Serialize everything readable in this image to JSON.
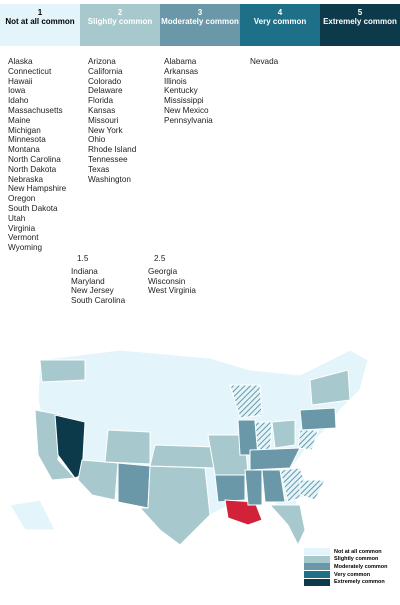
{
  "scale": [
    {
      "number": "1",
      "label": "Not at all common",
      "color": "#e3f5fa",
      "text": "#000"
    },
    {
      "number": "2",
      "label": "Slightly common",
      "color": "#a7c9cd",
      "text": "#fff"
    },
    {
      "number": "3",
      "label": "Moderately common",
      "color": "#6a98a8",
      "text": "#fff"
    },
    {
      "number": "4",
      "label": "Very common",
      "color": "#1d7088",
      "text": "#fff"
    },
    {
      "number": "5",
      "label": "Extremely common",
      "color": "#0c3a4a",
      "text": "#fff"
    }
  ],
  "columns": [
    [
      "Alaska",
      "Connecticut",
      "Hawaii",
      "Iowa",
      "Idaho",
      "Massachusetts",
      "Maine",
      "Michigan",
      "Minnesota",
      "Montana",
      "North Carolina",
      "North Dakota",
      "Nebraska",
      "New Hampshire",
      "Oregon",
      "South Dakota",
      "Utah",
      "Virginia",
      "Vermont",
      "Wyoming"
    ],
    [
      "Arizona",
      "California",
      "Colorado",
      "Delaware",
      "Florida",
      "Kansas",
      "Missouri",
      "New York",
      "Ohio",
      "Rhode Island",
      "Tennessee",
      "Texas",
      "Washington"
    ],
    [
      "Alabama",
      "Arkansas",
      "Illinois",
      "Kentucky",
      "Mississippi",
      "New Mexico",
      "Pennsylvania"
    ],
    [
      "Nevada"
    ]
  ],
  "intermediate": [
    {
      "number": "1.5",
      "states": [
        "Indiana",
        "Maryland",
        "New Jersey",
        "South Carolina"
      ]
    },
    {
      "number": "2.5",
      "states": [
        "Georgia",
        "Wisconsin",
        "West Virginia"
      ]
    }
  ],
  "legend": [
    "Not at all common",
    "Slightly common",
    "Moderately common",
    "Very common",
    "Extremely common"
  ]
}
